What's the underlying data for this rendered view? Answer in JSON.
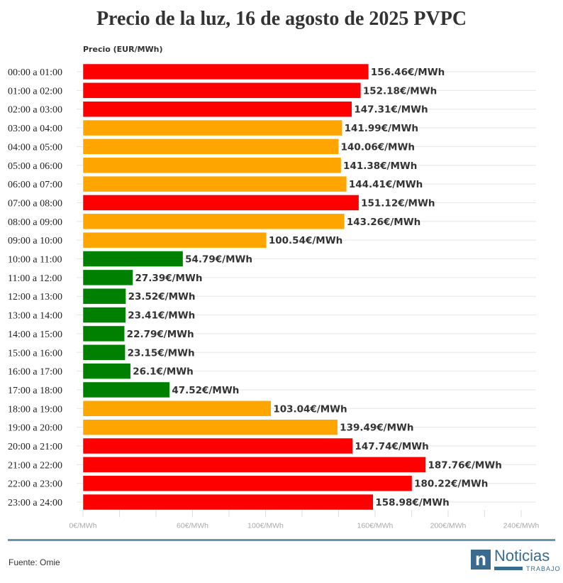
{
  "title": "Precio de la luz, 16 de agosto de 2025 PVPC",
  "source": "Fuente: Omie",
  "logo": {
    "word": "Noticias",
    "sub": "TRABAJO",
    "letter": "n"
  },
  "colors": {
    "high": "#ff0000",
    "mid": "#ffa500",
    "low": "#008000"
  },
  "chart_data": {
    "type": "bar",
    "orientation": "horizontal",
    "ylabel": "Precio (EUR/MWh)",
    "xlim": [
      0,
      240
    ],
    "x_ticks": [
      0,
      20,
      40,
      60,
      80,
      100,
      120,
      140,
      160,
      180,
      200,
      220,
      240
    ],
    "x_tick_labels": [
      {
        "value": 0,
        "label": "0€/MWh"
      },
      {
        "value": 60,
        "label": "60€/MWh"
      },
      {
        "value": 100,
        "label": "100€/MWh"
      },
      {
        "value": 160,
        "label": "160€/MWh"
      },
      {
        "value": 200,
        "label": "200€/MWh"
      },
      {
        "value": 240,
        "label": "240€/MWh"
      }
    ],
    "grid": true,
    "unit_suffix": "€/MWh",
    "categories": [
      "00:00 a 01:00",
      "01:00 a 02:00",
      "02:00 a 03:00",
      "03:00 a 04:00",
      "04:00 a 05:00",
      "05:00 a 06:00",
      "06:00 a 07:00",
      "07:00 a 08:00",
      "08:00 a 09:00",
      "09:00 a 10:00",
      "10:00 a 11:00",
      "11:00 a 12:00",
      "12:00 a 13:00",
      "13:00 a 14:00",
      "14:00 a 15:00",
      "15:00 a 16:00",
      "16:00 a 17:00",
      "17:00 a 18:00",
      "18:00 a 19:00",
      "19:00 a 20:00",
      "20:00 a 21:00",
      "21:00 a 22:00",
      "22:00 a 23:00",
      "23:00 a 24:00"
    ],
    "values": [
      156.46,
      152.18,
      147.31,
      141.99,
      140.06,
      141.38,
      144.41,
      151.12,
      143.26,
      100.54,
      54.79,
      27.39,
      23.52,
      23.41,
      22.79,
      23.15,
      26.1,
      47.52,
      103.04,
      139.49,
      147.74,
      187.76,
      180.22,
      158.98
    ],
    "levels": [
      "high",
      "high",
      "high",
      "mid",
      "mid",
      "mid",
      "mid",
      "high",
      "mid",
      "mid",
      "low",
      "low",
      "low",
      "low",
      "low",
      "low",
      "low",
      "low",
      "mid",
      "mid",
      "high",
      "high",
      "high",
      "high"
    ]
  }
}
